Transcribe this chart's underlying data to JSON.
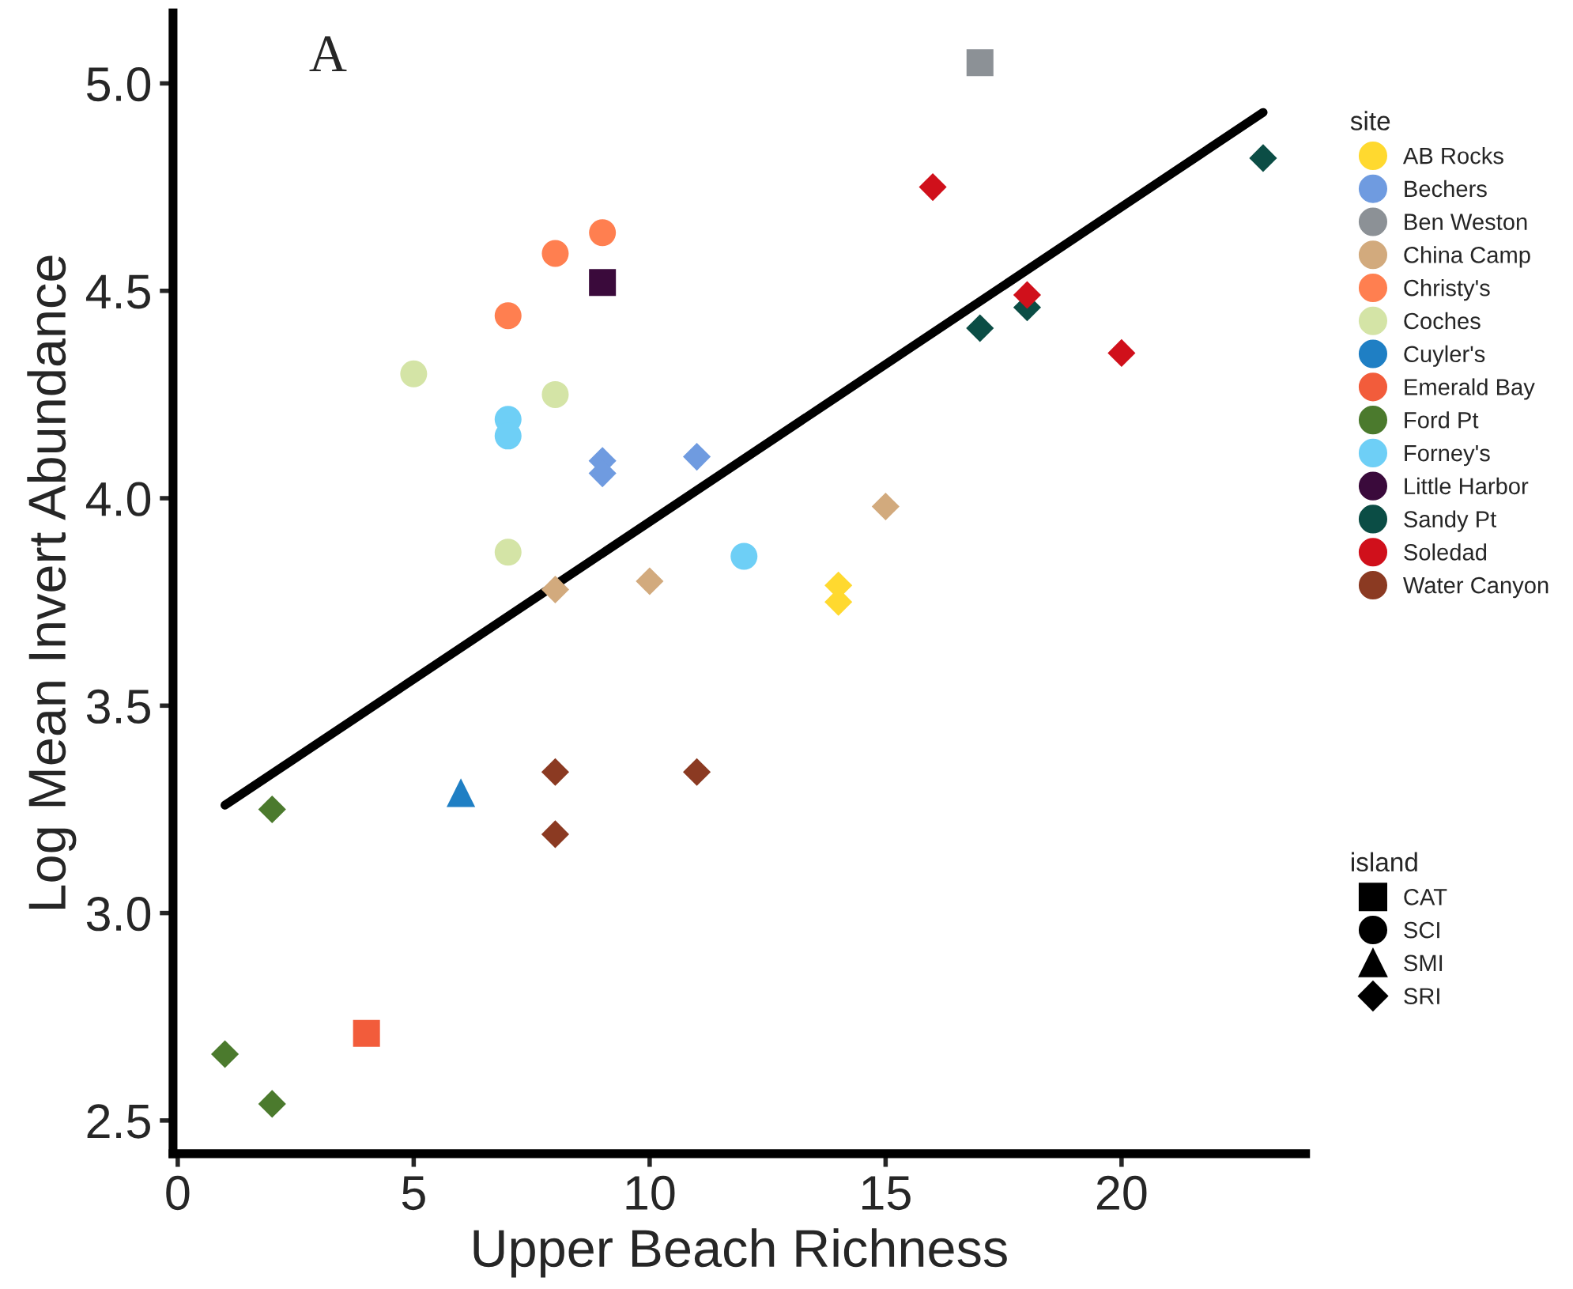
{
  "chart_data": {
    "type": "scatter",
    "xlabel": "Upper Beach Richness",
    "ylabel": "Log Mean Invert Abundance",
    "annotations": [
      "A"
    ],
    "legend_title": [
      "site",
      "island"
    ],
    "legend": "right",
    "grid": false,
    "xlim": [
      -0.1,
      23.9
    ],
    "ylim": [
      2.42,
      5.17
    ],
    "xticks": [
      0,
      5,
      10,
      15,
      20
    ],
    "yticks": [
      {
        "value": 2.5,
        "label": "2.5"
      },
      {
        "value": 3,
        "label": "3.0"
      },
      {
        "value": 3.5,
        "label": "3.5"
      },
      {
        "value": 4,
        "label": "4.0"
      },
      {
        "value": 4.5,
        "label": "4.5"
      },
      {
        "value": 5,
        "label": "5.0"
      }
    ],
    "series": [
      {
        "name": "AB Rocks",
        "color": "#ffd92f",
        "marker": "diamond",
        "x": [
          14,
          14
        ],
        "values": [
          3.79,
          3.75
        ]
      },
      {
        "name": "Bechers",
        "color": "#6f9be0",
        "marker": "diamond",
        "x": [
          9,
          9,
          11
        ],
        "values": [
          4.09,
          4.06,
          4.1
        ]
      },
      {
        "name": "Ben Weston",
        "color": "#8c9196",
        "marker": "square",
        "x": [
          17
        ],
        "values": [
          5.05
        ]
      },
      {
        "name": "China Camp",
        "color": "#d2aa7d",
        "marker": "diamond",
        "x": [
          8,
          10,
          15
        ],
        "values": [
          3.78,
          3.8,
          3.98
        ]
      },
      {
        "name": "Christy's",
        "color": "#ff7f50",
        "marker": "circle",
        "x": [
          7,
          8,
          9
        ],
        "values": [
          4.44,
          4.59,
          4.64
        ]
      },
      {
        "name": "Coches",
        "color": "#d4e4a6",
        "marker": "circle",
        "x": [
          5,
          8,
          7
        ],
        "values": [
          4.3,
          4.25,
          3.87
        ]
      },
      {
        "name": "Cuyler's",
        "color": "#1f7fc4",
        "marker": "triangle",
        "x": [
          6
        ],
        "values": [
          3.29
        ]
      },
      {
        "name": "Emerald Bay",
        "color": "#f25c3b",
        "marker": "square",
        "x": [
          4
        ],
        "values": [
          2.71
        ]
      },
      {
        "name": "Ford Pt",
        "color": "#4b7a2d",
        "marker": "diamond",
        "x": [
          2,
          1,
          2
        ],
        "values": [
          3.25,
          2.66,
          2.54
        ]
      },
      {
        "name": "Forney's",
        "color": "#6ecff6",
        "marker": "circle",
        "x": [
          7,
          7,
          12
        ],
        "values": [
          4.19,
          4.15,
          3.86
        ]
      },
      {
        "name": "Little Harbor",
        "color": "#3a0a3b",
        "marker": "square",
        "x": [
          9
        ],
        "values": [
          4.52
        ]
      },
      {
        "name": "Sandy Pt",
        "color": "#0b4d45",
        "marker": "diamond",
        "x": [
          17,
          18,
          23
        ],
        "values": [
          4.41,
          4.46,
          4.82
        ]
      },
      {
        "name": "Soledad",
        "color": "#d0101b",
        "marker": "diamond",
        "x": [
          16,
          18,
          20
        ],
        "values": [
          4.75,
          4.49,
          4.35
        ]
      },
      {
        "name": "Water Canyon",
        "color": "#8b3a22",
        "marker": "diamond",
        "x": [
          8,
          8,
          11
        ],
        "values": [
          3.34,
          3.19,
          3.34
        ]
      },
      {
        "name": "CAT",
        "color": "#000000",
        "marker": "square"
      },
      {
        "name": "SCI",
        "color": "#000000",
        "marker": "circle"
      },
      {
        "name": "SMI",
        "color": "#000000",
        "marker": "triangle"
      },
      {
        "name": "SRI",
        "color": "#000000",
        "marker": "diamond"
      },
      {
        "type": "line",
        "color": "#000000",
        "marker": "none",
        "x": [
          1,
          23
        ],
        "values": [
          3.26,
          4.93
        ]
      }
    ]
  }
}
